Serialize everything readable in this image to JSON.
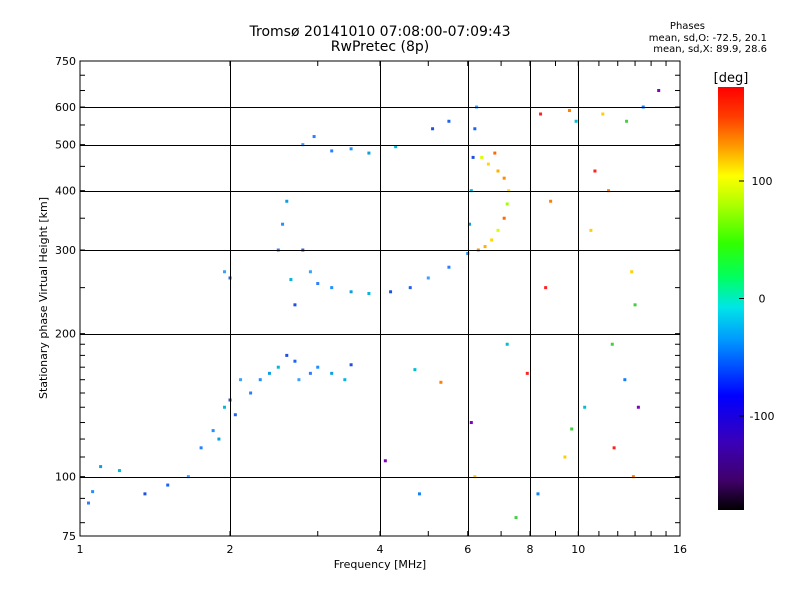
{
  "header": {
    "title_line1": "Tromsø 20141010 07:08:00-07:09:43",
    "title_line2": "RwPretec (8p)",
    "phase_title": "Phases",
    "phase_o": "mean, sd,O: -72.5, 20.1",
    "phase_x": "mean, sd,X:  89.9, 28.6"
  },
  "chart_data": {
    "type": "scatter",
    "title": "Tromsø 20141010 07:08:00-07:09:43",
    "subtitle": "RwPretec (8p)",
    "xlabel": "Frequency [MHz]",
    "ylabel": "Stationary phase Virtual Height [km]",
    "x_scale": "log",
    "y_scale": "log",
    "xlim": [
      1,
      16
    ],
    "ylim": [
      75,
      750
    ],
    "xticks": [
      1,
      2,
      4,
      6,
      8,
      10,
      16
    ],
    "yticks": [
      75,
      100,
      200,
      300,
      400,
      500,
      600,
      750
    ],
    "grid": true,
    "colorbar": {
      "label": "[deg]",
      "range": [
        -180,
        180
      ],
      "ticks": [
        100,
        0,
        -100
      ]
    },
    "series": [
      {
        "marker": "o-mode",
        "points": [
          [
            1.04,
            88
          ],
          [
            1.06,
            93
          ],
          [
            1.1,
            105
          ],
          [
            1.2,
            103
          ],
          [
            1.35,
            92
          ],
          [
            1.5,
            96
          ],
          [
            1.65,
            100
          ],
          [
            1.75,
            115
          ],
          [
            1.85,
            125
          ],
          [
            1.9,
            120
          ],
          [
            1.95,
            140
          ],
          [
            2.0,
            145
          ],
          [
            2.05,
            135
          ],
          [
            2.1,
            160
          ],
          [
            2.2,
            150
          ],
          [
            2.3,
            160
          ],
          [
            2.4,
            165
          ],
          [
            2.5,
            170
          ],
          [
            2.6,
            180
          ],
          [
            2.7,
            175
          ],
          [
            2.75,
            160
          ],
          [
            2.9,
            165
          ],
          [
            3.0,
            170
          ],
          [
            3.2,
            165
          ],
          [
            3.4,
            160
          ],
          [
            3.5,
            172
          ],
          [
            2.0,
            262
          ],
          [
            1.95,
            270
          ],
          [
            2.5,
            300
          ],
          [
            2.55,
            340
          ],
          [
            2.6,
            380
          ],
          [
            2.65,
            260
          ],
          [
            2.7,
            230
          ],
          [
            2.8,
            300
          ],
          [
            2.9,
            270
          ],
          [
            3.0,
            255
          ],
          [
            3.2,
            250
          ],
          [
            3.5,
            245
          ],
          [
            3.8,
            243
          ],
          [
            4.2,
            245
          ],
          [
            4.6,
            250
          ],
          [
            5.0,
            262
          ],
          [
            5.5,
            276
          ],
          [
            6.0,
            295
          ],
          [
            6.05,
            340
          ],
          [
            6.1,
            400
          ],
          [
            6.15,
            470
          ],
          [
            6.2,
            540
          ],
          [
            6.25,
            600
          ],
          [
            3.2,
            485
          ],
          [
            3.5,
            490
          ],
          [
            3.8,
            480
          ],
          [
            4.3,
            495
          ],
          [
            5.1,
            540
          ],
          [
            5.5,
            560
          ],
          [
            2.8,
            500
          ],
          [
            2.95,
            520
          ]
        ]
      },
      {
        "marker": "x-mode",
        "points": [
          [
            6.3,
            300
          ],
          [
            6.5,
            305
          ],
          [
            6.7,
            315
          ],
          [
            6.9,
            330
          ],
          [
            7.1,
            350
          ],
          [
            7.2,
            375
          ],
          [
            7.25,
            400
          ],
          [
            7.1,
            425
          ],
          [
            6.9,
            440
          ],
          [
            6.6,
            455
          ],
          [
            6.4,
            470
          ],
          [
            6.8,
            480
          ]
        ]
      },
      {
        "marker": "scattered",
        "points": [
          [
            8.4,
            580
          ],
          [
            9.6,
            590
          ],
          [
            11.2,
            580
          ],
          [
            12.5,
            560
          ],
          [
            13.5,
            600
          ],
          [
            14.5,
            650
          ],
          [
            9.9,
            560
          ],
          [
            10.8,
            440
          ],
          [
            11.5,
            400
          ],
          [
            12.8,
            270
          ],
          [
            13.0,
            230
          ],
          [
            12.4,
            160
          ],
          [
            13.2,
            140
          ],
          [
            10.3,
            140
          ],
          [
            11.8,
            115
          ],
          [
            12.9,
            100
          ],
          [
            9.4,
            110
          ],
          [
            9.7,
            126
          ],
          [
            8.3,
            92
          ],
          [
            6.1,
            130
          ],
          [
            7.2,
            190
          ],
          [
            7.9,
            165
          ],
          [
            5.3,
            158
          ],
          [
            6.2,
            100
          ],
          [
            7.5,
            82
          ],
          [
            4.8,
            92
          ],
          [
            4.1,
            108
          ],
          [
            4.7,
            168
          ],
          [
            8.6,
            250
          ],
          [
            8.8,
            380
          ],
          [
            10.6,
            330
          ],
          [
            11.7,
            190
          ]
        ]
      }
    ]
  }
}
